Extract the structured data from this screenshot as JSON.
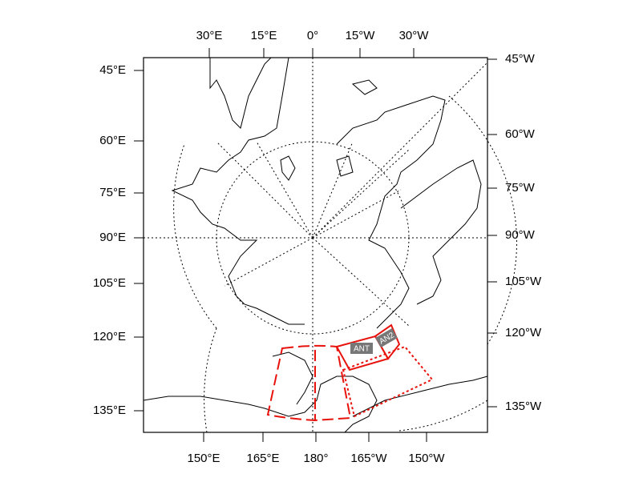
{
  "map": {
    "top_labels": [
      "30°E",
      "15°E",
      "0°",
      "15°W",
      "30°W"
    ],
    "bottom_labels": [
      "150°E",
      "165°E",
      "180°",
      "165°W",
      "150°W"
    ],
    "left_labels": [
      "45°E",
      "60°E",
      "75°E",
      "90°E",
      "105°E",
      "120°E",
      "135°E"
    ],
    "right_labels": [
      "45°W",
      "60°W",
      "75°W",
      "90°W",
      "105°W",
      "120°W",
      "135°W"
    ],
    "regions": [
      {
        "label": "ANT"
      },
      {
        "label": "AN2"
      }
    ]
  }
}
